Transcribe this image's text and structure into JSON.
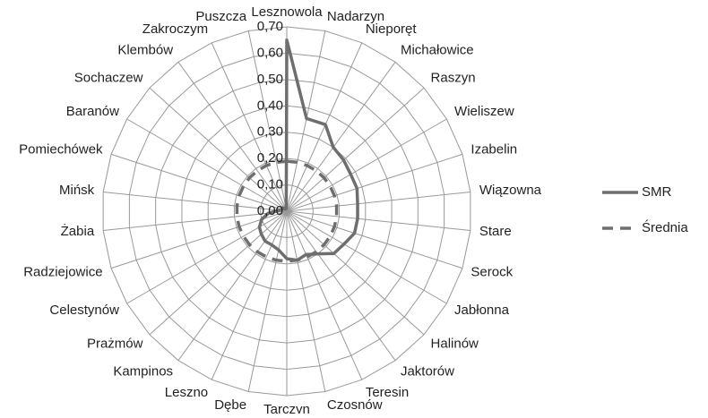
{
  "chart_data": {
    "type": "radar",
    "categories": [
      "Lesznowola",
      "Nadarzyn",
      "Nieporęt",
      "Michałowice",
      "Raszyn",
      "Wieliszew",
      "Izabelin",
      "Wiązowna",
      "Stare",
      "Serock",
      "Jabłonna",
      "Halinów",
      "Jaktorów",
      "Teresin",
      "Czosnów",
      "Tarczyn",
      "Dębe",
      "Leszno",
      "Kampinos",
      "Prażmów",
      "Celestynów",
      "Radziejowice",
      "Żabia",
      "Mińsk",
      "Pomiechówek",
      "Baranów",
      "Sochaczew",
      "Klembów",
      "Zakroczym",
      "Puszcza"
    ],
    "series": [
      {
        "name": "SMR",
        "color": "#6e6e6e",
        "dash": false,
        "values": [
          0.65,
          0.36,
          0.36,
          0.3,
          0.29,
          0.28,
          0.28,
          0.27,
          0.27,
          0.27,
          0.25,
          0.24,
          0.2,
          0.18,
          0.19,
          0.18,
          0.15,
          0.14,
          0.14,
          0.13,
          0.12,
          0.1,
          0.07,
          0.03,
          0.02,
          0.02,
          0.02,
          0.01,
          0.01,
          0.01
        ]
      },
      {
        "name": "Średnia",
        "color": "#6e6e6e",
        "dash": true,
        "values": [
          0.19,
          0.19,
          0.19,
          0.19,
          0.19,
          0.19,
          0.19,
          0.19,
          0.19,
          0.19,
          0.19,
          0.19,
          0.19,
          0.19,
          0.19,
          0.19,
          0.19,
          0.19,
          0.19,
          0.19,
          0.19,
          0.19,
          0.19,
          0.19,
          0.19,
          0.19,
          0.19,
          0.19,
          0.19,
          0.19
        ]
      }
    ],
    "ylim": [
      0,
      0.7
    ],
    "yticks": [
      {
        "value": 0,
        "label": "0,00"
      },
      {
        "value": 0.1,
        "label": "0,10"
      },
      {
        "value": 0.2,
        "label": "0,20"
      },
      {
        "value": 0.3,
        "label": "0,30"
      },
      {
        "value": 0.4,
        "label": "0,40"
      },
      {
        "value": 0.5,
        "label": "0,50"
      },
      {
        "value": 0.6,
        "label": "0,60"
      },
      {
        "value": 0.7,
        "label": "0,70"
      }
    ],
    "grid": true,
    "legend": "right"
  }
}
